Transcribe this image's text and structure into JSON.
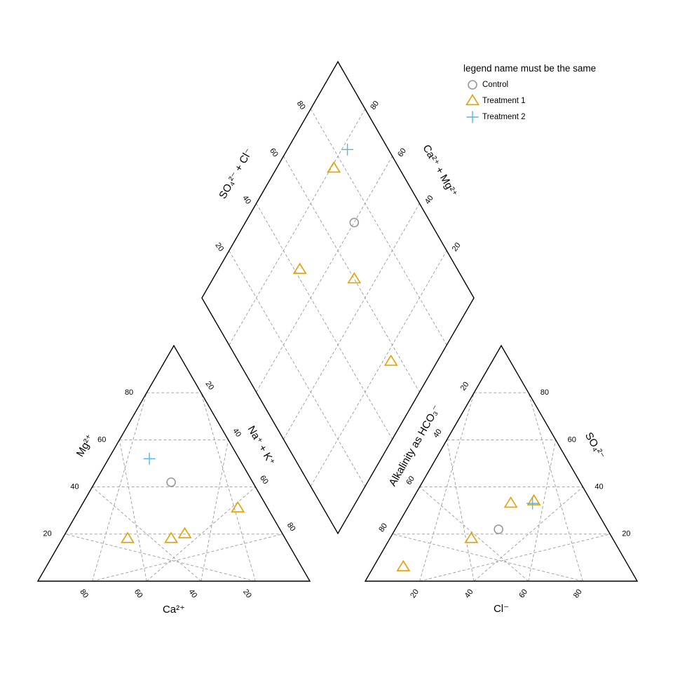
{
  "chart_data": {
    "type": "piper",
    "legend": {
      "title": "legend name must be the same",
      "placement": "top-right",
      "entries": [
        {
          "label": "Control",
          "marker": "circle",
          "color": "#999999"
        },
        {
          "label": "Treatment 1",
          "marker": "triangle",
          "color": "#E69F00"
        },
        {
          "label": "Treatment 2",
          "marker": "cross",
          "color": "#56B4E9"
        }
      ]
    },
    "cation_ternary": {
      "title": "Ca²⁺",
      "left_axis_label": "Mg²⁺",
      "right_axis_label": "Na⁺ + K⁺",
      "bottom_ticks": [
        "80",
        "60",
        "40",
        "20"
      ],
      "left_ticks": [
        "20",
        "40",
        "60",
        "80"
      ],
      "right_ticks": [
        "20",
        "40",
        "60",
        "80"
      ]
    },
    "anion_ternary": {
      "title": "Cl⁻",
      "left_axis_label": "Alkalinity as HCO₃⁻",
      "right_axis_label": "SO₄²⁻",
      "bottom_ticks": [
        "20",
        "40",
        "60",
        "80"
      ],
      "left_ticks": [
        "20",
        "40",
        "60",
        "80"
      ],
      "right_ticks": [
        "20",
        "40",
        "60",
        "80"
      ]
    },
    "diamond": {
      "left_axis_label": "SO₄²⁻ + Cl⁻",
      "right_axis_label": "Ca²⁺ + Mg²⁺",
      "left_ticks": [
        "20",
        "40",
        "60",
        "80"
      ],
      "right_ticks": [
        "20",
        "40",
        "60",
        "80"
      ]
    },
    "series": [
      {
        "name": "Control",
        "marker": "circle",
        "color": "#999999",
        "points": [
          {
            "ca": 30,
            "mg": 42,
            "cl": 38,
            "so4": 22,
            "hco3": 40
          }
        ]
      },
      {
        "name": "Treatment 1",
        "marker": "triangle",
        "color": "#E69F00",
        "points": [
          {
            "ca": 11,
            "mg": 31,
            "cl": 37,
            "so4": 33,
            "hco3": 30
          },
          {
            "ca": 42,
            "mg": 18,
            "cl": 30,
            "so4": 18,
            "hco3": 52
          },
          {
            "ca": 36,
            "mg": 20,
            "cl": 11,
            "so4": 6,
            "hco3": 83
          },
          {
            "ca": 58,
            "mg": 18,
            "cl": 45,
            "so4": 34,
            "hco3": 21
          }
        ]
      },
      {
        "name": "Treatment 2",
        "marker": "cross",
        "color": "#56B4E9",
        "points": [
          {
            "ca": 33,
            "mg": 52,
            "cl": 45,
            "so4": 33,
            "hco3": 22
          }
        ]
      }
    ]
  }
}
